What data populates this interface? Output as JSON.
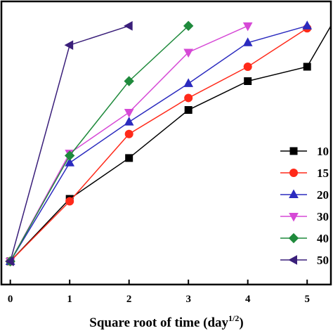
{
  "chart_data": {
    "type": "line",
    "xlabel": "Square root of time (day",
    "xlabel_sup": "1/2",
    "xlabel_close": ")",
    "x_ticks": [
      0,
      1,
      2,
      3,
      4,
      5
    ],
    "xlim": [
      -0.15,
      5.4
    ],
    "ylim": [
      0,
      1
    ],
    "grid": false,
    "legend_position": "right",
    "series": [
      {
        "name": "10",
        "color": "#000000",
        "marker": "square",
        "x": [
          0,
          1,
          2,
          3,
          4,
          5,
          5.4
        ],
        "y": [
          0,
          0.26,
          0.43,
          0.63,
          0.75,
          0.81,
          0.98
        ]
      },
      {
        "name": "15",
        "color": "#ff2a1a",
        "marker": "circle",
        "x": [
          0,
          1,
          2,
          3,
          4,
          5
        ],
        "y": [
          0,
          0.25,
          0.53,
          0.68,
          0.81,
          0.97
        ]
      },
      {
        "name": "20",
        "color": "#2b2bbf",
        "marker": "triangle-up",
        "x": [
          0,
          1,
          2,
          3,
          4,
          5
        ],
        "y": [
          0,
          0.41,
          0.58,
          0.74,
          0.91,
          0.98
        ]
      },
      {
        "name": "30",
        "color": "#d649d6",
        "marker": "triangle-down",
        "x": [
          0,
          1,
          2,
          3,
          4
        ],
        "y": [
          0,
          0.45,
          0.62,
          0.87,
          0.98
        ]
      },
      {
        "name": "40",
        "color": "#1f8a3c",
        "marker": "diamond",
        "x": [
          0,
          1,
          2,
          3
        ],
        "y": [
          0,
          0.44,
          0.75,
          0.98
        ]
      },
      {
        "name": "50",
        "color": "#3a1f7a",
        "marker": "triangle-left",
        "x": [
          0,
          1,
          2
        ],
        "y": [
          0,
          0.9,
          0.98
        ]
      }
    ]
  }
}
